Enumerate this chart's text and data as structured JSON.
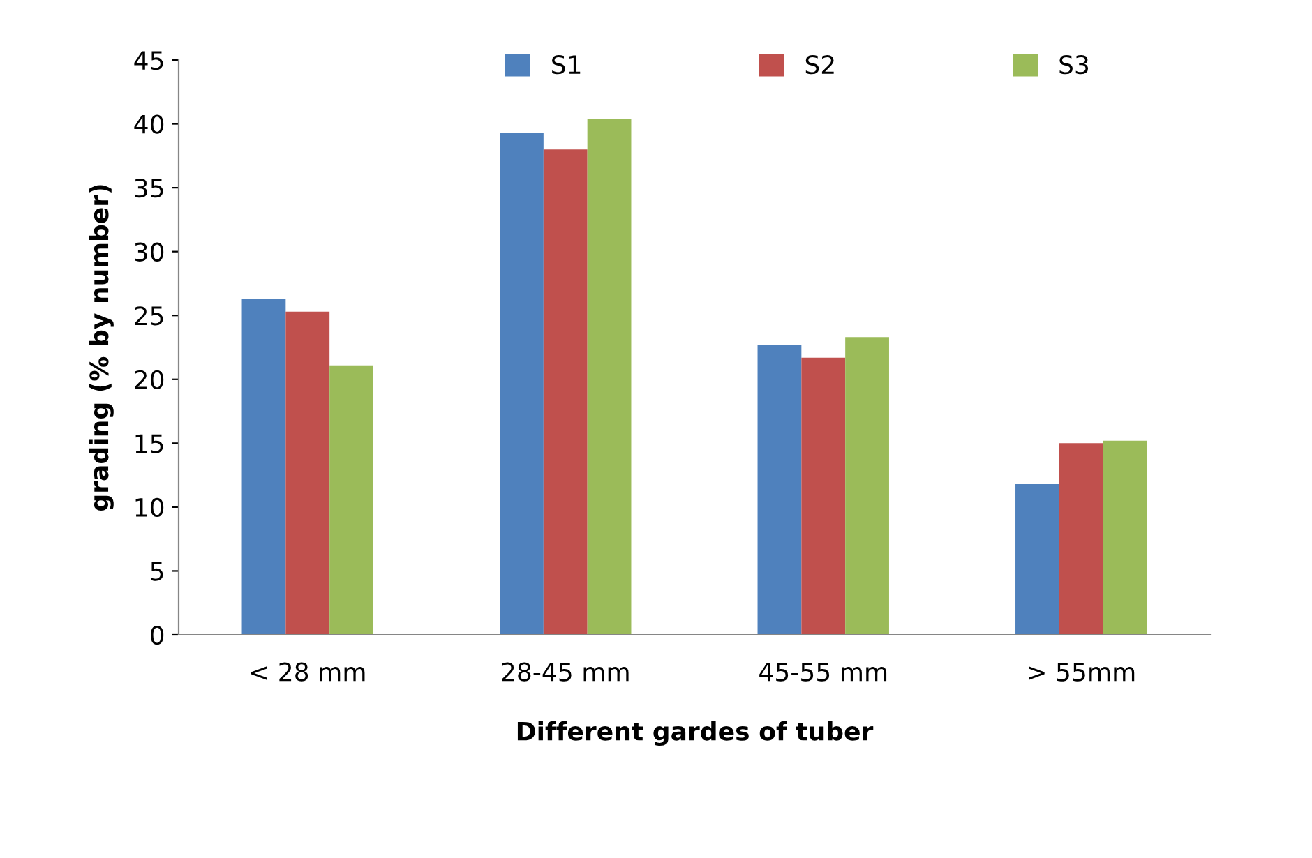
{
  "chart_data": {
    "type": "bar",
    "xlabel": "Different gardes of tuber",
    "ylabel": "grading (% by number)",
    "categories": [
      "< 28 mm",
      "28-45 mm",
      "45-55 mm",
      "> 55mm"
    ],
    "series": [
      {
        "name": "S1",
        "color": "#4f81bd",
        "values": [
          26.3,
          39.3,
          22.7,
          11.8
        ]
      },
      {
        "name": "S2",
        "color": "#c0504d",
        "values": [
          25.3,
          38.0,
          21.7,
          15.0
        ]
      },
      {
        "name": "S3",
        "color": "#9bbb59",
        "values": [
          21.1,
          40.4,
          23.3,
          15.2
        ]
      }
    ],
    "ylim": [
      0,
      45
    ],
    "yticks": [
      0,
      5,
      10,
      15,
      20,
      25,
      30,
      35,
      40,
      45
    ],
    "grid": false,
    "legend": "top"
  }
}
